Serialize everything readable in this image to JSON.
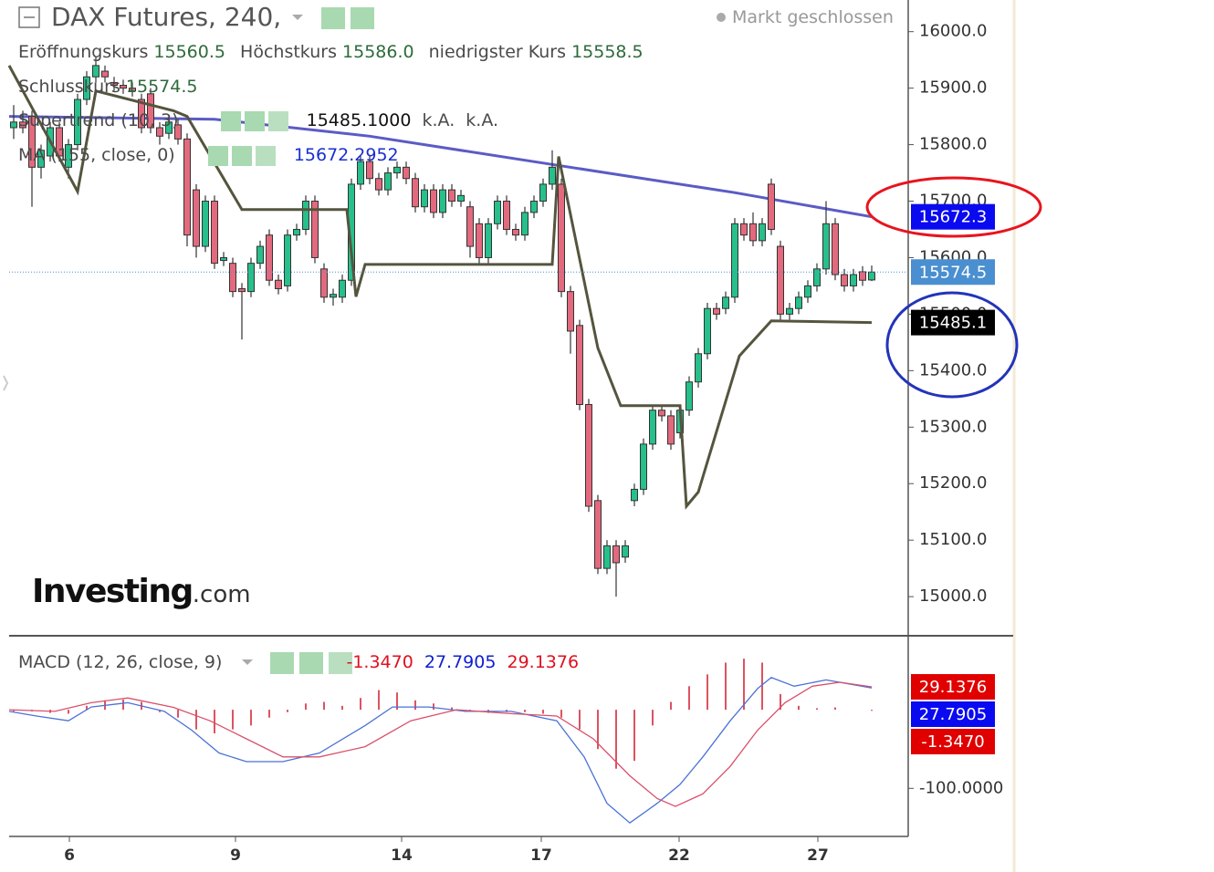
{
  "header": {
    "title": "DAX Futures, 240,",
    "status": "Markt geschlossen",
    "ohlc": [
      {
        "label": "Eröffnungskurs",
        "value": "15560.5"
      },
      {
        "label": "Höchstkurs",
        "value": "15586.0"
      },
      {
        "label": "niedrigster Kurs",
        "value": "15558.5"
      },
      {
        "label": "Schlusskurs",
        "value": "15574.5"
      }
    ],
    "supertrend_label": "Supertrend (10, 3)",
    "na": "k.A.",
    "ma_label": "MA (155, close, 0)",
    "macd_label": "MACD (12, 26, close, 9)",
    "logo": "Investing",
    "logo_suffix": ".com"
  },
  "chart_data": [
    {
      "type": "candlestick",
      "colors": {
        "up": "#27c08b",
        "down": "#e36a7e"
      },
      "candles": [
        [
          15830,
          15870,
          15810,
          15840
        ],
        [
          15840,
          15860,
          15820,
          15830
        ],
        [
          15850,
          15860,
          15690,
          15760
        ],
        [
          15760,
          15800,
          15740,
          15790
        ],
        [
          15780,
          15840,
          15770,
          15830
        ],
        [
          15830,
          15840,
          15770,
          15780
        ],
        [
          15760,
          15810,
          15740,
          15800
        ],
        [
          15800,
          15890,
          15790,
          15880
        ],
        [
          15880,
          15930,
          15870,
          15920
        ],
        [
          15920,
          15956,
          15910,
          15940
        ],
        [
          15930,
          15940,
          15910,
          15920
        ],
        [
          15910,
          15920,
          15895,
          15905
        ],
        [
          15905,
          15915,
          15890,
          15900
        ],
        [
          15900,
          15910,
          15885,
          15895
        ],
        [
          15880,
          15890,
          15820,
          15830
        ],
        [
          15890,
          15900,
          15820,
          15830
        ],
        [
          15830,
          15840,
          15800,
          15815
        ],
        [
          15820,
          15850,
          15810,
          15840
        ],
        [
          15835,
          15845,
          15800,
          15810
        ],
        [
          15810,
          15820,
          15620,
          15640
        ],
        [
          15720,
          15730,
          15600,
          15620
        ],
        [
          15620,
          15710,
          15610,
          15700
        ],
        [
          15700,
          15710,
          15580,
          15590
        ],
        [
          15595,
          15610,
          15585,
          15600
        ],
        [
          15590,
          15600,
          15530,
          15540
        ],
        [
          15545,
          15555,
          15455,
          15540
        ],
        [
          15540,
          15600,
          15530,
          15590
        ],
        [
          15590,
          15630,
          15580,
          15620
        ],
        [
          15640,
          15650,
          15550,
          15560
        ],
        [
          15560,
          15570,
          15535,
          15545
        ],
        [
          15550,
          15650,
          15540,
          15640
        ],
        [
          15640,
          15660,
          15630,
          15650
        ],
        [
          15650,
          15710,
          15640,
          15700
        ],
        [
          15700,
          15710,
          15590,
          15600
        ],
        [
          15580,
          15590,
          15520,
          15530
        ],
        [
          15530,
          15545,
          15515,
          15535
        ],
        [
          15530,
          15570,
          15520,
          15560
        ],
        [
          15560,
          15740,
          15550,
          15730
        ],
        [
          15730,
          15780,
          15720,
          15770
        ],
        [
          15770,
          15780,
          15730,
          15740
        ],
        [
          15740,
          15750,
          15710,
          15720
        ],
        [
          15720,
          15760,
          15710,
          15750
        ],
        [
          15750,
          15770,
          15740,
          15760
        ],
        [
          15760,
          15770,
          15730,
          15740
        ],
        [
          15740,
          15750,
          15680,
          15690
        ],
        [
          15690,
          15730,
          15680,
          15720
        ],
        [
          15720,
          15730,
          15670,
          15680
        ],
        [
          15680,
          15730,
          15670,
          15720
        ],
        [
          15720,
          15730,
          15690,
          15700
        ],
        [
          15700,
          15720,
          15690,
          15710
        ],
        [
          15690,
          15700,
          15600,
          15620
        ],
        [
          15660,
          15670,
          15590,
          15600
        ],
        [
          15600,
          15670,
          15590,
          15660
        ],
        [
          15660,
          15710,
          15650,
          15700
        ],
        [
          15700,
          15710,
          15640,
          15650
        ],
        [
          15650,
          15660,
          15630,
          15640
        ],
        [
          15640,
          15690,
          15630,
          15680
        ],
        [
          15680,
          15710,
          15670,
          15700
        ],
        [
          15700,
          15740,
          15690,
          15730
        ],
        [
          15730,
          15790,
          15720,
          15760
        ],
        [
          15730,
          15740,
          15530,
          15540
        ],
        [
          15540,
          15550,
          15430,
          15470
        ],
        [
          15480,
          15490,
          15330,
          15340
        ],
        [
          15340,
          15350,
          15150,
          15160
        ],
        [
          15170,
          15180,
          15040,
          15050
        ],
        [
          15050,
          15100,
          15040,
          15090
        ],
        [
          15090,
          15100,
          15000,
          15060
        ],
        [
          15070,
          15100,
          15060,
          15090
        ],
        [
          15170,
          15200,
          15160,
          15190
        ],
        [
          15190,
          15280,
          15180,
          15270
        ],
        [
          15270,
          15340,
          15260,
          15330
        ],
        [
          15330,
          15340,
          15310,
          15320
        ],
        [
          15320,
          15330,
          15260,
          15270
        ],
        [
          15290,
          15340,
          15280,
          15330
        ],
        [
          15330,
          15390,
          15320,
          15380
        ],
        [
          15380,
          15440,
          15370,
          15430
        ],
        [
          15430,
          15520,
          15420,
          15510
        ],
        [
          15510,
          15520,
          15490,
          15500
        ],
        [
          15510,
          15540,
          15500,
          15530
        ],
        [
          15530,
          15670,
          15520,
          15660
        ],
        [
          15660,
          15670,
          15630,
          15640
        ],
        [
          15660,
          15680,
          15620,
          15630
        ],
        [
          15630,
          15670,
          15620,
          15660
        ],
        [
          15730,
          15740,
          15640,
          15650
        ],
        [
          15620,
          15630,
          15490,
          15500
        ],
        [
          15500,
          15520,
          15490,
          15510
        ],
        [
          15510,
          15540,
          15500,
          15530
        ],
        [
          15530,
          15560,
          15520,
          15550
        ],
        [
          15550,
          15590,
          15540,
          15580
        ],
        [
          15580,
          15700,
          15570,
          15660
        ],
        [
          15660,
          15670,
          15560,
          15570
        ],
        [
          15570,
          15580,
          15540,
          15550
        ],
        [
          15550,
          15580,
          15540,
          15570
        ],
        [
          15575,
          15585,
          15550,
          15560
        ],
        [
          15560.5,
          15586,
          15558.5,
          15574.5
        ]
      ],
      "supertrend": {
        "color": "#55553f",
        "value_label": "15485.1000",
        "x": [
          -0.5,
          7,
          9,
          17.5,
          19,
          25,
          36.5,
          37.5,
          38.5,
          59,
          59.7,
          64,
          66.5,
          73,
          73.7,
          75,
          79.5,
          83,
          94
        ],
        "values": [
          15940,
          15717,
          15895,
          15860,
          15850,
          15685,
          15685,
          15531,
          15588,
          15588,
          15779,
          15440,
          15338,
          15338,
          15160,
          15185,
          15426,
          15488,
          15485.1
        ]
      },
      "ma": {
        "color": "#5b5bc6",
        "last_label": "15672.3",
        "x": [
          -0.5,
          22,
          39,
          59,
          79,
          94
        ],
        "values": [
          15850,
          15845,
          15815,
          15765,
          15715,
          15672.2952
        ]
      },
      "xlim": [
        -0.5,
        98
      ],
      "xticks": [
        {
          "value": 6.1,
          "label": "6"
        },
        {
          "value": 24.3,
          "label": "9"
        },
        {
          "value": 42.5,
          "label": "14"
        },
        {
          "value": 57.8,
          "label": "17"
        },
        {
          "value": 72.9,
          "label": "22"
        },
        {
          "value": 88.1,
          "label": "27"
        }
      ],
      "ylim": [
        14934,
        16056
      ],
      "yticks": [
        {
          "value": 15000,
          "label": "15000.0"
        },
        {
          "value": 15100,
          "label": "15100.0"
        },
        {
          "value": 15200,
          "label": "15200.0"
        },
        {
          "value": 15300,
          "label": "15300.0"
        },
        {
          "value": 15400,
          "label": "15400.0"
        },
        {
          "value": 15500,
          "label": "15500.0"
        },
        {
          "value": 15600,
          "label": "15600.0"
        },
        {
          "value": 15700,
          "label": "15700.0"
        },
        {
          "value": 15800,
          "label": "15800.0"
        },
        {
          "value": 15900,
          "label": "15900.0"
        },
        {
          "value": 16000,
          "label": "16000.0"
        }
      ]
    },
    {
      "type": "macd",
      "ylim": [
        -160,
        93
      ],
      "yticks": [
        {
          "value": -100,
          "label": "-100.0000"
        }
      ],
      "macd": {
        "color": "#4a72d6",
        "x": [
          -0.5,
          2.5,
          6,
          8.5,
          12.5,
          16.5,
          19.5,
          22.5,
          25.5,
          29.5,
          33.5,
          38.5,
          41.5,
          45.5,
          49.5,
          54.5,
          59.5,
          62.5,
          65,
          67.5,
          70.5,
          73,
          75.5,
          78.5,
          81.5,
          83,
          85.5,
          89,
          94
        ],
        "values": [
          -2,
          -8,
          -14,
          3.5,
          9,
          -2,
          -26,
          -55,
          -66,
          -66,
          -55,
          -20,
          3.5,
          3.5,
          -2,
          -2,
          -14,
          -60,
          -119,
          -144,
          -119,
          -95,
          -60,
          -14,
          27,
          41,
          30,
          38,
          27.7905
        ]
      },
      "signal": {
        "color": "#d9506a",
        "x": [
          -0.5,
          4.5,
          8.5,
          12.5,
          17.5,
          21.5,
          25.5,
          29.5,
          33.5,
          38.5,
          43.5,
          48.5,
          54.5,
          59.5,
          63.5,
          67.5,
          70.5,
          72.5,
          75.5,
          78.5,
          81.5,
          84.5,
          87.5,
          90.5,
          94
        ],
        "values": [
          0,
          -2,
          9,
          15,
          3,
          -14,
          -37,
          -60,
          -60,
          -47,
          -14,
          0,
          -5,
          -8,
          -37,
          -84,
          -113,
          -123,
          -107,
          -72,
          -26,
          9,
          30,
          35,
          29.1376
        ]
      },
      "histogram": {
        "color": "#d9404f",
        "x": [
          0,
          2,
          4,
          6,
          8,
          10,
          12,
          14,
          16,
          18,
          20,
          22,
          24,
          26,
          28,
          30,
          32,
          34,
          36,
          38,
          40,
          42,
          44,
          46,
          48,
          50,
          52,
          54,
          56,
          58,
          60,
          62,
          64,
          66,
          68,
          70,
          72,
          74,
          76,
          78,
          80,
          82,
          84,
          86,
          88,
          90,
          92,
          94
        ],
        "values": [
          -2,
          -2,
          -4,
          -5,
          5,
          12,
          13,
          10,
          -3,
          -10,
          -25,
          -30,
          -25,
          -20,
          -10,
          -3,
          8,
          10,
          5,
          15,
          25,
          22,
          12,
          8,
          3,
          -2,
          -4,
          -3,
          -3,
          -5,
          -10,
          -25,
          -50,
          -75,
          -65,
          -20,
          10,
          30,
          45,
          60,
          65,
          60,
          20,
          5,
          2,
          3,
          0,
          -1.347
        ]
      },
      "value_labels": {
        "signal": "29.1376",
        "macd": "27.7905",
        "histogram": "-1.3470"
      }
    }
  ]
}
